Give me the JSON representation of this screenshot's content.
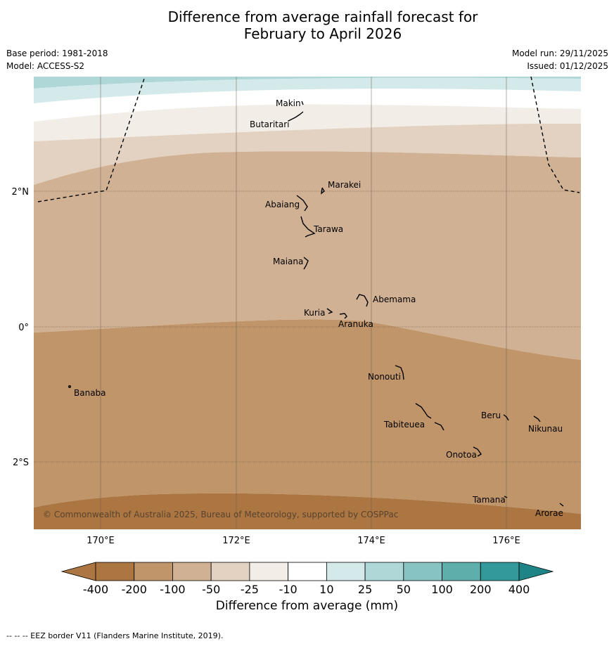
{
  "title": {
    "line1": "Difference from average rainfall forecast for",
    "line2": "February to April 2026"
  },
  "meta": {
    "base_period": "Base period: 1981-2018",
    "model": "Model: ACCESS-S2",
    "model_run": "Model run: 29/11/2025",
    "issued": "Issued: 01/12/2025"
  },
  "map": {
    "lon_labels": [
      "170°E",
      "172°E",
      "174°E",
      "176°E"
    ],
    "lat_labels": [
      "2°N",
      "0°",
      "2°S"
    ],
    "copyright": "© Commonwealth of Australia 2025, Bureau of Meteorology, supported by COSPPac",
    "places": [
      {
        "name": "Makin"
      },
      {
        "name": "Butaritari"
      },
      {
        "name": "Marakei"
      },
      {
        "name": "Abaiang"
      },
      {
        "name": "Tarawa"
      },
      {
        "name": "Maiana"
      },
      {
        "name": "Abemama"
      },
      {
        "name": "Kuria"
      },
      {
        "name": "Aranuka"
      },
      {
        "name": "Nonouti"
      },
      {
        "name": "Banaba"
      },
      {
        "name": "Beru"
      },
      {
        "name": "Nikunau"
      },
      {
        "name": "Tabiteuea"
      },
      {
        "name": "Onotoa"
      },
      {
        "name": "Tamana"
      },
      {
        "name": "Arorae"
      }
    ]
  },
  "colorbar": {
    "ticks": [
      "-400",
      "-200",
      "-100",
      "-50",
      "-25",
      "-10",
      "10",
      "25",
      "50",
      "100",
      "200",
      "400"
    ],
    "colors": [
      "#ab7641",
      "#c0956a",
      "#d1b193",
      "#e3d1c1",
      "#f2ede7",
      "#ffffff",
      "#d4eaea",
      "#b0d7d7",
      "#86c3c2",
      "#5eaeac",
      "#33999a",
      "#1f8485"
    ],
    "label": "Difference from average (mm)"
  },
  "footer": "--  --  -- EEZ border V11 (Flanders Marine Institute, 2019)."
}
